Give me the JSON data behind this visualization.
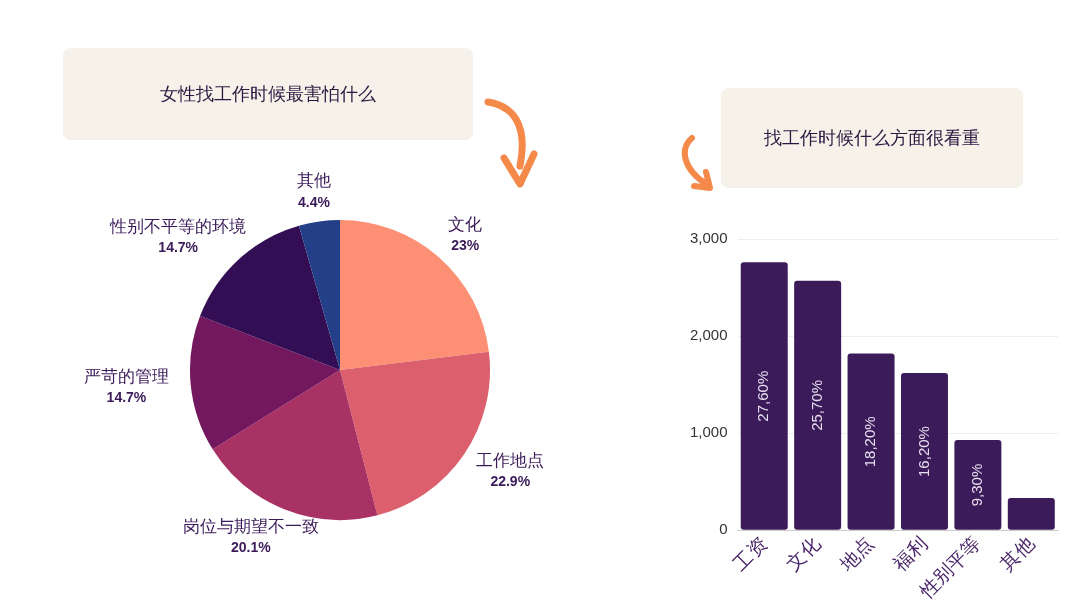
{
  "chart_data": [
    {
      "type": "pie",
      "title": "女性找工作时候最害怕什么",
      "categories": [
        "文化",
        "工作地点",
        "岗位与期望不一致",
        "严苛的管理",
        "性别不平等的环境",
        "其他"
      ],
      "values": [
        23,
        22.9,
        20.1,
        14.7,
        14.7,
        4.4
      ],
      "value_labels": [
        "23%",
        "22.9%",
        "20.1%",
        "14.7%",
        "14.7%",
        "4.4%"
      ],
      "colors": [
        "#fd8f74",
        "#dc5f6e",
        "#a93264",
        "#73175f",
        "#330e55",
        "#233f88"
      ],
      "legend": false
    },
    {
      "type": "bar",
      "title": "找工作时候什么方面很看重",
      "categories": [
        "工资",
        "文化",
        "地点",
        "福利",
        "性别平等",
        "其他"
      ],
      "values": [
        2760,
        2570,
        1820,
        1620,
        930,
        330
      ],
      "annotations": [
        "27,60%",
        "25,70%",
        "18,20%",
        "16,20%",
        "9,30%"
      ],
      "color": "#3c1b5a",
      "ylim": [
        0,
        3000
      ],
      "yticks": [
        0,
        {
          "value": 1000,
          "label": "1,000"
        },
        {
          "value": 2000,
          "label": "2,000"
        },
        {
          "value": 3000,
          "label": "3,000"
        }
      ],
      "grid": "y",
      "legend": false
    }
  ]
}
